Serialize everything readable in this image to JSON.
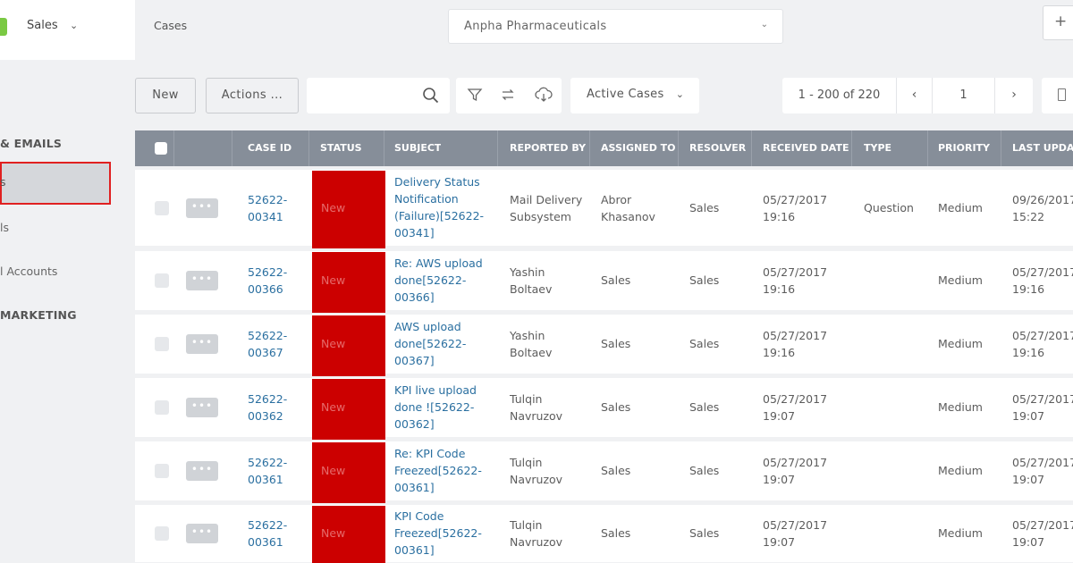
{
  "app": {
    "name": "Sales",
    "breadcrumb": "Cases",
    "company": "Anpha Pharmaceuticals",
    "add_label": "+"
  },
  "sidebar": {
    "section_emails": "& EMAILS",
    "active_item": "s",
    "item_2": "ls",
    "item_3": "l Accounts",
    "section_marketing": "MARKETING"
  },
  "toolbar": {
    "new_label": "New",
    "actions_label": "Actions ...",
    "search_value": "",
    "view_label": "Active Cases",
    "pager_range": "1 - 200 of 220",
    "page_value": "1",
    "prev_label": "‹",
    "next_label": "›"
  },
  "table": {
    "columns": [
      "CASE ID",
      "STATUS",
      "SUBJECT",
      "REPORTED BY",
      "ASSIGNED TO",
      "RESOLVER",
      "RECEIVED DATE",
      "TYPE",
      "PRIORITY",
      "LAST UPDAT"
    ],
    "rows": [
      {
        "id1": "52622-",
        "id2": "00341",
        "status": "New",
        "s1": "Delivery Status",
        "s2": "Notification",
        "s3": "(Failure)[52622-",
        "s4": "00341]",
        "rep1": "Mail Delivery",
        "rep2": "Subsystem",
        "asg1": "Abror",
        "asg2": "Khasanov",
        "resolver": "Sales",
        "date1": "05/27/2017",
        "date2": "19:16",
        "type": "Question",
        "priority": "Medium",
        "upd1": "09/26/2017",
        "upd2": "15:22"
      },
      {
        "id1": "52622-",
        "id2": "00366",
        "status": "New",
        "s1": "Re: AWS upload",
        "s2": "done[52622-",
        "s3": "00366]",
        "s4": "",
        "rep1": "Yashin",
        "rep2": "Boltaev",
        "asg1": "Sales",
        "asg2": "",
        "resolver": "Sales",
        "date1": "05/27/2017",
        "date2": "19:16",
        "type": "",
        "priority": "Medium",
        "upd1": "05/27/2017",
        "upd2": "19:16"
      },
      {
        "id1": "52622-",
        "id2": "00367",
        "status": "New",
        "s1": "AWS upload",
        "s2": "done[52622-",
        "s3": "00367]",
        "s4": "",
        "rep1": "Yashin",
        "rep2": "Boltaev",
        "asg1": "Sales",
        "asg2": "",
        "resolver": "Sales",
        "date1": "05/27/2017",
        "date2": "19:16",
        "type": "",
        "priority": "Medium",
        "upd1": "05/27/2017",
        "upd2": "19:16"
      },
      {
        "id1": "52622-",
        "id2": "00362",
        "status": "New",
        "s1": "KPI live upload",
        "s2": "done ![52622-",
        "s3": "00362]",
        "s4": "",
        "rep1": "Tulqin",
        "rep2": "Navruzov",
        "asg1": "Sales",
        "asg2": "",
        "resolver": "Sales",
        "date1": "05/27/2017",
        "date2": "19:07",
        "type": "",
        "priority": "Medium",
        "upd1": "05/27/2017",
        "upd2": "19:07"
      },
      {
        "id1": "52622-",
        "id2": "00361",
        "status": "New",
        "s1": "Re: KPI Code",
        "s2": "Freezed[52622-",
        "s3": "00361]",
        "s4": "",
        "rep1": "Tulqin",
        "rep2": "Navruzov",
        "asg1": "Sales",
        "asg2": "",
        "resolver": "Sales",
        "date1": "05/27/2017",
        "date2": "19:07",
        "type": "",
        "priority": "Medium",
        "upd1": "05/27/2017",
        "upd2": "19:07"
      },
      {
        "id1": "52622-",
        "id2": "00361",
        "status": "New",
        "s1": "KPI Code",
        "s2": "Freezed[52622-",
        "s3": "00361]",
        "s4": "",
        "rep1": "Tulqin",
        "rep2": "Navruzov",
        "asg1": "Sales",
        "asg2": "",
        "resolver": "Sales",
        "date1": "05/27/2017",
        "date2": "19:07",
        "type": "",
        "priority": "Medium",
        "upd1": "05/27/2017",
        "upd2": "19:07"
      }
    ]
  },
  "colors": {
    "status_new": "#cc0000",
    "header": "#868e99",
    "link": "#2a6fa0",
    "highlight_border": "#e02020"
  }
}
